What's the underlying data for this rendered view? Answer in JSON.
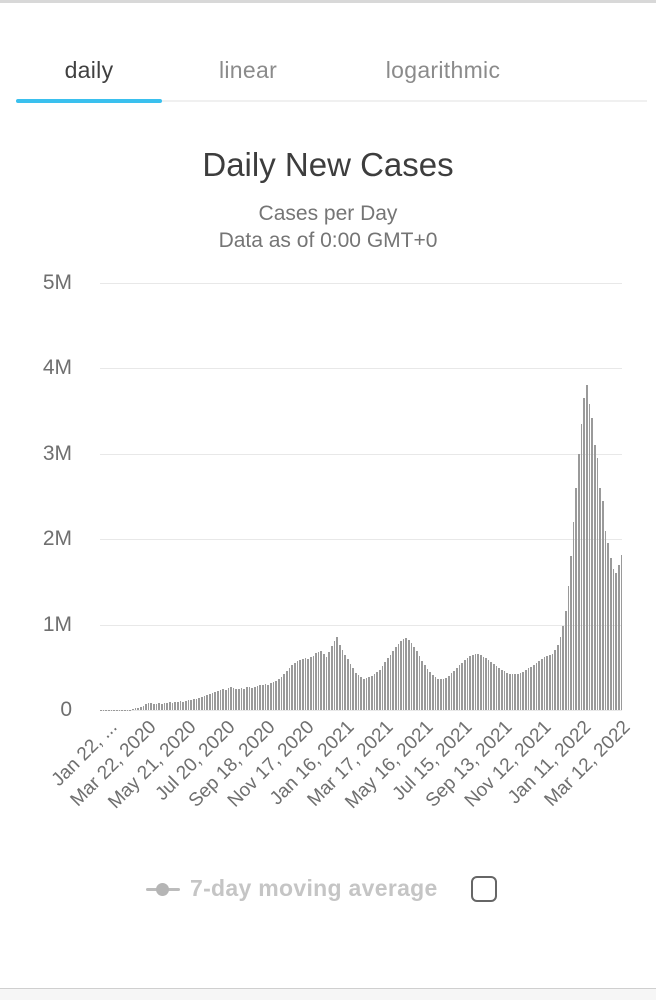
{
  "tabs": {
    "accent_color": "#3ac0ee",
    "items": [
      {
        "label": "daily",
        "active": true
      },
      {
        "label": "linear",
        "active": false
      },
      {
        "label": "logarithmic",
        "active": false
      }
    ]
  },
  "header": {
    "title": "Daily New Cases",
    "subtitle": "Cases per Day",
    "note": "Data as of 0:00 GMT+0"
  },
  "legend": {
    "label": "7-day moving average",
    "marker_icon": "line-dot-icon",
    "checkbox_checked": false
  },
  "chart_data": {
    "type": "bar",
    "title": "Daily New Cases",
    "xlabel": "",
    "ylabel": "",
    "ylim": [
      0,
      5150000
    ],
    "grid": true,
    "bar_color": "#9a9a9a",
    "grid_color": "#e8e8e8",
    "yticks": [
      {
        "value": 0,
        "label": "0"
      },
      {
        "value": 1000000,
        "label": "1M"
      },
      {
        "value": 2000000,
        "label": "2M"
      },
      {
        "value": 3000000,
        "label": "3M"
      },
      {
        "value": 4000000,
        "label": "4M"
      },
      {
        "value": 5000000,
        "label": "5M"
      }
    ],
    "xticklabels": [
      "Jan 22, ...",
      "Mar 22, 2020",
      "May 21, 2020",
      "Jul 20, 2020",
      "Sep 18, 2020",
      "Nov 17, 2020",
      "Jan 16, 2021",
      "Mar 17, 2021",
      "May 16, 2021",
      "Jul 15, 2021",
      "Sep 13, 2021",
      "Nov 12, 2021",
      "Jan 11, 2022",
      "Mar 12, 2022"
    ],
    "series_start_label": "Jan 22, 2020",
    "point_interval_days": 4,
    "values_unit": "thousands of new cases per day",
    "values_thousands": [
      1,
      2,
      3,
      5,
      3,
      4,
      2,
      2,
      3,
      2,
      3,
      5,
      9,
      18,
      28,
      36,
      50,
      66,
      78,
      84,
      76,
      72,
      82,
      74,
      86,
      80,
      90,
      82,
      94,
      98,
      102,
      92,
      108,
      112,
      120,
      124,
      134,
      142,
      155,
      162,
      175,
      192,
      205,
      210,
      228,
      230,
      248,
      238,
      258,
      264,
      255,
      248,
      245,
      260,
      250,
      265,
      270,
      258,
      274,
      280,
      288,
      296,
      305,
      295,
      315,
      330,
      340,
      362,
      388,
      418,
      455,
      492,
      522,
      550,
      570,
      588,
      595,
      608,
      596,
      615,
      638,
      662,
      680,
      695,
      660,
      618,
      684,
      745,
      805,
      850,
      760,
      700,
      640,
      598,
      538,
      488,
      438,
      408,
      382,
      368,
      376,
      386,
      398,
      420,
      445,
      472,
      515,
      560,
      605,
      650,
      695,
      735,
      772,
      810,
      835,
      848,
      824,
      788,
      740,
      688,
      634,
      578,
      528,
      484,
      442,
      408,
      382,
      366,
      358,
      364,
      378,
      400,
      428,
      460,
      494,
      526,
      554,
      582,
      606,
      628,
      646,
      658,
      652,
      642,
      626,
      606,
      584,
      560,
      536,
      512,
      490,
      470,
      452,
      438,
      426,
      418,
      416,
      422,
      434,
      450,
      468,
      488,
      508,
      528,
      550,
      574,
      598,
      622,
      638,
      648,
      658,
      700,
      760,
      850,
      980,
      1160,
      1450,
      1800,
      2200,
      2600,
      3000,
      3350,
      3650,
      3800,
      3580,
      3420,
      3100,
      2950,
      2600,
      2450,
      2100,
      1950,
      1780,
      1650,
      1600,
      1700,
      1820
    ]
  }
}
